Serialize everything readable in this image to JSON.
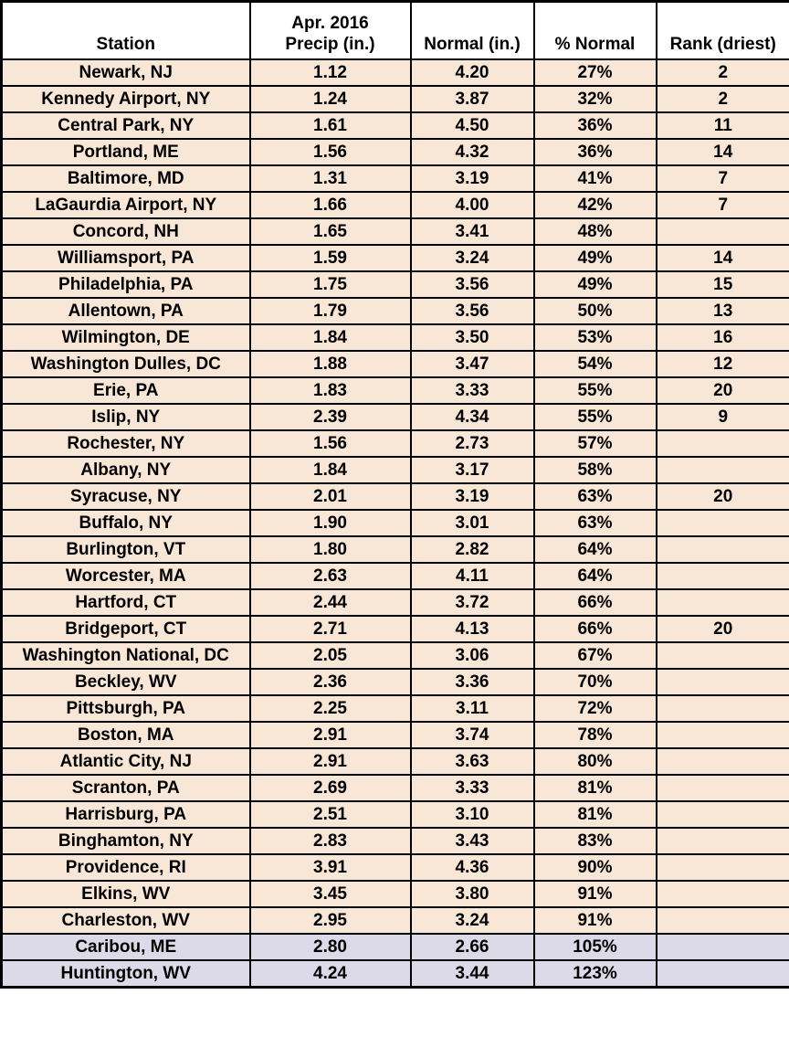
{
  "colors": {
    "row_bg": "#F8E7D6",
    "highlight_bg": "#DCDAE8",
    "header_bg": "#FFFFFF",
    "border": "#000000",
    "text": "#000000"
  },
  "chart_data": {
    "type": "table",
    "title": "",
    "columns": [
      "Station",
      "Apr. 2016 Precip (in.)",
      "Normal (in.)",
      "% Normal",
      "Rank (driest)"
    ],
    "header": {
      "station": "Station",
      "precip_line1": "Apr. 2016",
      "precip_line2": "Precip (in.)",
      "normal": "Normal (in.)",
      "pct_normal": "% Normal",
      "rank": "Rank (driest)"
    },
    "rows": [
      {
        "station": "Newark, NJ",
        "precip": "1.12",
        "normal": "4.20",
        "pct_normal": "27%",
        "rank": "2",
        "highlight": false
      },
      {
        "station": "Kennedy Airport, NY",
        "precip": "1.24",
        "normal": "3.87",
        "pct_normal": "32%",
        "rank": "2",
        "highlight": false
      },
      {
        "station": "Central Park, NY",
        "precip": "1.61",
        "normal": "4.50",
        "pct_normal": "36%",
        "rank": "11",
        "highlight": false
      },
      {
        "station": "Portland, ME",
        "precip": "1.56",
        "normal": "4.32",
        "pct_normal": "36%",
        "rank": "14",
        "highlight": false
      },
      {
        "station": "Baltimore, MD",
        "precip": "1.31",
        "normal": "3.19",
        "pct_normal": "41%",
        "rank": "7",
        "highlight": false
      },
      {
        "station": "LaGaurdia Airport, NY",
        "precip": "1.66",
        "normal": "4.00",
        "pct_normal": "42%",
        "rank": "7",
        "highlight": false
      },
      {
        "station": "Concord, NH",
        "precip": "1.65",
        "normal": "3.41",
        "pct_normal": "48%",
        "rank": "",
        "highlight": false
      },
      {
        "station": "Williamsport, PA",
        "precip": "1.59",
        "normal": "3.24",
        "pct_normal": "49%",
        "rank": "14",
        "highlight": false
      },
      {
        "station": "Philadelphia, PA",
        "precip": "1.75",
        "normal": "3.56",
        "pct_normal": "49%",
        "rank": "15",
        "highlight": false
      },
      {
        "station": "Allentown, PA",
        "precip": "1.79",
        "normal": "3.56",
        "pct_normal": "50%",
        "rank": "13",
        "highlight": false
      },
      {
        "station": "Wilmington, DE",
        "precip": "1.84",
        "normal": "3.50",
        "pct_normal": "53%",
        "rank": "16",
        "highlight": false
      },
      {
        "station": "Washington Dulles, DC",
        "precip": "1.88",
        "normal": "3.47",
        "pct_normal": "54%",
        "rank": "12",
        "highlight": false
      },
      {
        "station": "Erie, PA",
        "precip": "1.83",
        "normal": "3.33",
        "pct_normal": "55%",
        "rank": "20",
        "highlight": false
      },
      {
        "station": "Islip, NY",
        "precip": "2.39",
        "normal": "4.34",
        "pct_normal": "55%",
        "rank": "9",
        "highlight": false
      },
      {
        "station": "Rochester, NY",
        "precip": "1.56",
        "normal": "2.73",
        "pct_normal": "57%",
        "rank": "",
        "highlight": false
      },
      {
        "station": "Albany, NY",
        "precip": "1.84",
        "normal": "3.17",
        "pct_normal": "58%",
        "rank": "",
        "highlight": false
      },
      {
        "station": "Syracuse, NY",
        "precip": "2.01",
        "normal": "3.19",
        "pct_normal": "63%",
        "rank": "20",
        "highlight": false
      },
      {
        "station": "Buffalo, NY",
        "precip": "1.90",
        "normal": "3.01",
        "pct_normal": "63%",
        "rank": "",
        "highlight": false
      },
      {
        "station": "Burlington, VT",
        "precip": "1.80",
        "normal": "2.82",
        "pct_normal": "64%",
        "rank": "",
        "highlight": false
      },
      {
        "station": "Worcester, MA",
        "precip": "2.63",
        "normal": "4.11",
        "pct_normal": "64%",
        "rank": "",
        "highlight": false
      },
      {
        "station": "Hartford, CT",
        "precip": "2.44",
        "normal": "3.72",
        "pct_normal": "66%",
        "rank": "",
        "highlight": false
      },
      {
        "station": "Bridgeport, CT",
        "precip": "2.71",
        "normal": "4.13",
        "pct_normal": "66%",
        "rank": "20",
        "highlight": false
      },
      {
        "station": "Washington National, DC",
        "precip": "2.05",
        "normal": "3.06",
        "pct_normal": "67%",
        "rank": "",
        "highlight": false
      },
      {
        "station": "Beckley, WV",
        "precip": "2.36",
        "normal": "3.36",
        "pct_normal": "70%",
        "rank": "",
        "highlight": false
      },
      {
        "station": "Pittsburgh, PA",
        "precip": "2.25",
        "normal": "3.11",
        "pct_normal": "72%",
        "rank": "",
        "highlight": false
      },
      {
        "station": "Boston, MA",
        "precip": "2.91",
        "normal": "3.74",
        "pct_normal": "78%",
        "rank": "",
        "highlight": false
      },
      {
        "station": "Atlantic City, NJ",
        "precip": "2.91",
        "normal": "3.63",
        "pct_normal": "80%",
        "rank": "",
        "highlight": false
      },
      {
        "station": "Scranton, PA",
        "precip": "2.69",
        "normal": "3.33",
        "pct_normal": "81%",
        "rank": "",
        "highlight": false
      },
      {
        "station": "Harrisburg, PA",
        "precip": "2.51",
        "normal": "3.10",
        "pct_normal": "81%",
        "rank": "",
        "highlight": false
      },
      {
        "station": "Binghamton, NY",
        "precip": "2.83",
        "normal": "3.43",
        "pct_normal": "83%",
        "rank": "",
        "highlight": false
      },
      {
        "station": "Providence, RI",
        "precip": "3.91",
        "normal": "4.36",
        "pct_normal": "90%",
        "rank": "",
        "highlight": false
      },
      {
        "station": "Elkins, WV",
        "precip": "3.45",
        "normal": "3.80",
        "pct_normal": "91%",
        "rank": "",
        "highlight": false
      },
      {
        "station": "Charleston, WV",
        "precip": "2.95",
        "normal": "3.24",
        "pct_normal": "91%",
        "rank": "",
        "highlight": false
      },
      {
        "station": "Caribou, ME",
        "precip": "2.80",
        "normal": "2.66",
        "pct_normal": "105%",
        "rank": "",
        "highlight": true
      },
      {
        "station": "Huntington, WV",
        "precip": "4.24",
        "normal": "3.44",
        "pct_normal": "123%",
        "rank": "",
        "highlight": true
      }
    ]
  }
}
